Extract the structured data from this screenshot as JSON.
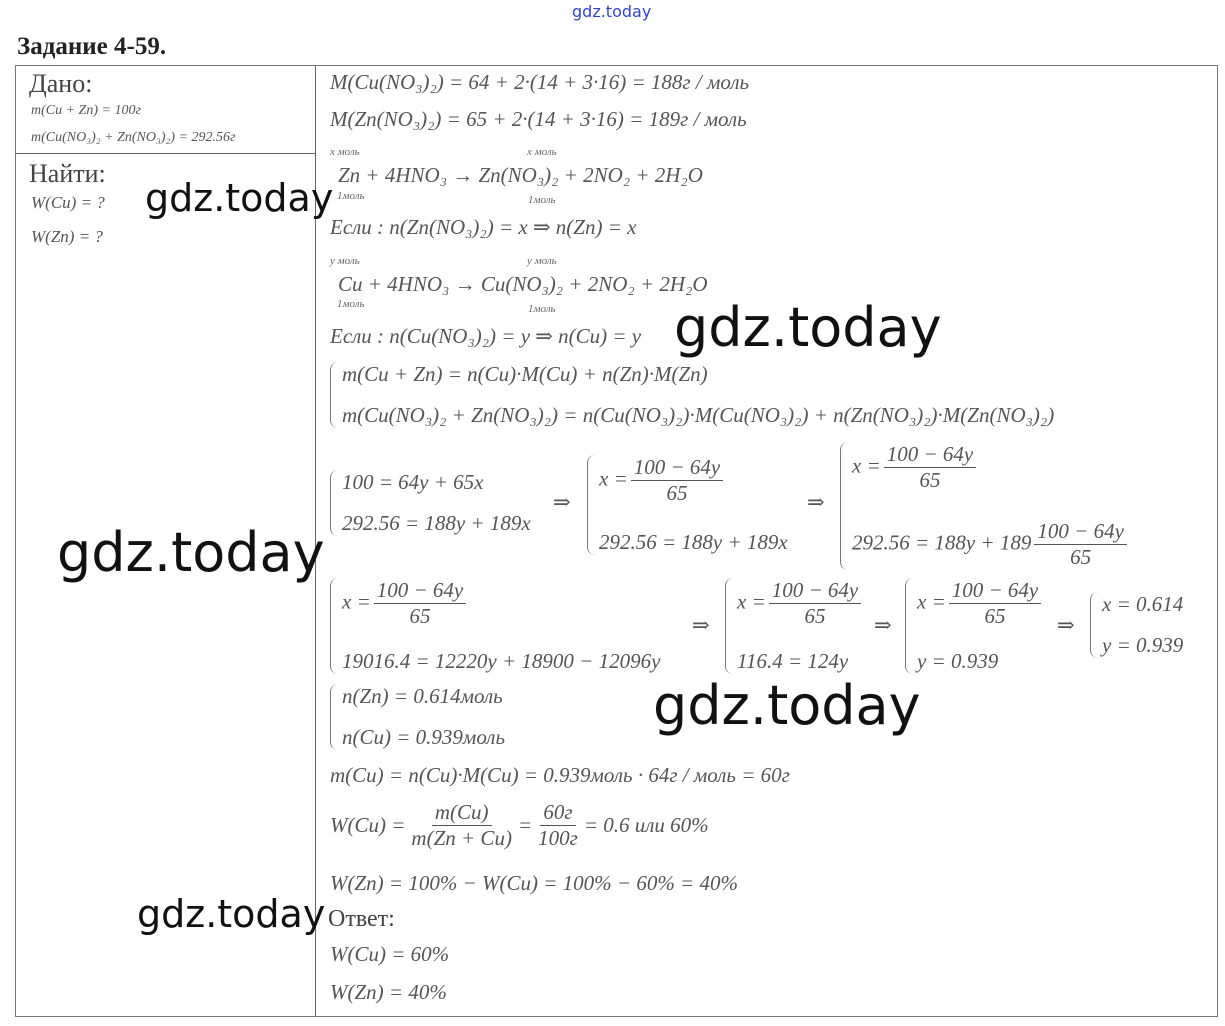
{
  "watermark": "gdz.today",
  "title": "Задание 4-59.",
  "given": {
    "label": "Дано:",
    "lines": [
      "m(Cu + Zn) = 100г",
      "m(Cu(NO₃)₂ + Zn(NO₃)₂) = 292.56г"
    ]
  },
  "find": {
    "label": "Найти:",
    "lines": [
      "W(Cu) = ?",
      "W(Zn) = ?"
    ]
  },
  "solution": {
    "molar1": "M(Cu(NO₃)₂) = 64 + 2·(14 + 3·16) = 188г / моль",
    "molar2": "M(Zn(NO₃)₂) = 65 + 2·(14 + 3·16) = 189г / моль",
    "r1_top_left": "x моль",
    "r1_top_right": "x моль",
    "r1": "Zn + 4HNO₃ → Zn(NO₃)₂ + 2NO₂ + 2H₂O",
    "r1_bot_left": "1моль",
    "r1_bot_right": "1моль",
    "if1": "Если : n(Zn(NO₃)₂) = x ⇒ n(Zn) = x",
    "r2_top_left": "y моль",
    "r2_top_right": "y моль",
    "r2": "Cu + 4HNO₃ → Cu(NO₃)₂ + 2NO₂ + 2H₂O",
    "r2_bot_left": "1моль",
    "r2_bot_right": "1моль",
    "if2": "Если : n(Cu(NO₃)₂) = y ⇒ n(Cu) = y",
    "sysA": [
      "m(Cu + Zn) = n(Cu)·M(Cu) + n(Zn)·M(Zn)",
      "m(Cu(NO₃)₂ + Zn(NO₃)₂) = n(Cu(NO₃)₂)·M(Cu(NO₃)₂) + n(Zn(NO₃)₂)·M(Zn(NO₃)₂)"
    ],
    "sysB": [
      "100 = 64y + 65x",
      "292.56 = 188y + 189x"
    ],
    "x_eq": "x =",
    "num": "100 − 64y",
    "den": "65",
    "implies": "⇒",
    "sysC2": "292.56 = 188y + 189x",
    "sysD2": "292.56 = 188y + 189",
    "sysE2": "19016.4 = 12220y + 18900 − 12096y",
    "sysF2": "116.4 = 124y",
    "sysG2": "y = 0.939",
    "sysH": [
      "x = 0.614",
      "y = 0.939"
    ],
    "sysI": [
      "n(Zn) = 0.614моль",
      "n(Cu) = 0.939моль"
    ],
    "mCu": "m(Cu) = n(Cu)·M(Cu) = 0.939моль · 64г / моль = 60г",
    "wcu_lhs": "W(Cu) =",
    "wcu_num1": "m(Cu)",
    "wcu_den1": "m(Zn + Cu)",
    "eq": "=",
    "wcu_num2": "60г",
    "wcu_den2": "100г",
    "wcu_rhs": "= 0.6 или 60%",
    "wzn": "W(Zn) = 100% − W(Cu) = 100% − 60% = 40%"
  },
  "answer": {
    "label": "Ответ:",
    "lines": [
      "W(Cu) = 60%",
      "W(Zn) = 40%"
    ]
  }
}
